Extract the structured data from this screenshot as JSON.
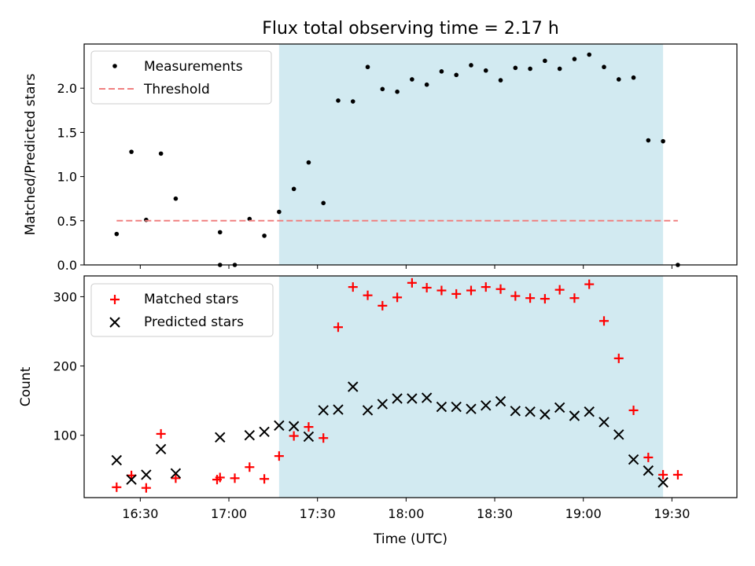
{
  "figure": {
    "title": "Flux total observing time = 2.17 h",
    "xlabel": "Time (UTC)",
    "shade_color": "#add8e6",
    "shade_range": [
      "17:17",
      "19:27"
    ]
  },
  "chart_data": [
    {
      "type": "scatter",
      "ylabel": "Matched/Predicted stars",
      "xlim": [
        "16:11",
        "19:52"
      ],
      "ylim": [
        0,
        2.5
      ],
      "yticks": [
        "0.0",
        "0.5",
        "1.0",
        "1.5",
        "2.0"
      ],
      "legend_position": "top-left",
      "series": [
        {
          "name": "Measurements",
          "marker": "dot",
          "color": "#000000",
          "points": [
            [
              "16:22",
              0.35
            ],
            [
              "16:27",
              1.28
            ],
            [
              "16:32",
              0.51
            ],
            [
              "16:37",
              1.26
            ],
            [
              "16:42",
              0.75
            ],
            [
              "16:57",
              0.0
            ],
            [
              "16:57",
              0.37
            ],
            [
              "17:02",
              0.0
            ],
            [
              "17:07",
              0.52
            ],
            [
              "17:12",
              0.33
            ],
            [
              "17:17",
              0.6
            ],
            [
              "17:22",
              0.86
            ],
            [
              "17:27",
              1.16
            ],
            [
              "17:32",
              0.7
            ],
            [
              "17:37",
              1.86
            ],
            [
              "17:42",
              1.85
            ],
            [
              "17:47",
              2.24
            ],
            [
              "17:52",
              1.99
            ],
            [
              "17:57",
              1.96
            ],
            [
              "18:02",
              2.1
            ],
            [
              "18:07",
              2.04
            ],
            [
              "18:12",
              2.19
            ],
            [
              "18:17",
              2.15
            ],
            [
              "18:22",
              2.26
            ],
            [
              "18:27",
              2.2
            ],
            [
              "18:32",
              2.09
            ],
            [
              "18:37",
              2.23
            ],
            [
              "18:42",
              2.22
            ],
            [
              "18:47",
              2.31
            ],
            [
              "18:52",
              2.22
            ],
            [
              "18:57",
              2.33
            ],
            [
              "19:02",
              2.38
            ],
            [
              "19:07",
              2.24
            ],
            [
              "19:12",
              2.1
            ],
            [
              "19:17",
              2.12
            ],
            [
              "19:22",
              1.41
            ],
            [
              "19:27",
              1.4
            ],
            [
              "19:32",
              0.0
            ]
          ]
        },
        {
          "name": "Threshold",
          "marker": "dashed-line",
          "color": "#f08080",
          "points": [
            [
              "16:22",
              0.5
            ],
            [
              "19:32",
              0.5
            ]
          ]
        }
      ]
    },
    {
      "type": "scatter",
      "ylabel": "Count",
      "xlim": [
        "16:11",
        "19:52"
      ],
      "ylim": [
        10,
        330
      ],
      "yticks": [
        "100",
        "200",
        "300"
      ],
      "xticks": [
        "16:30",
        "17:00",
        "17:30",
        "18:00",
        "18:30",
        "19:00",
        "19:30"
      ],
      "legend_position": "top-left",
      "series": [
        {
          "name": "Matched stars",
          "marker": "plus",
          "color": "#ff0000",
          "points": [
            [
              "16:22",
              25
            ],
            [
              "16:27",
              42
            ],
            [
              "16:32",
              24
            ],
            [
              "16:37",
              102
            ],
            [
              "16:42",
              38
            ],
            [
              "16:56",
              36
            ],
            [
              "16:57",
              39
            ],
            [
              "17:02",
              38
            ],
            [
              "17:07",
              54
            ],
            [
              "17:12",
              37
            ],
            [
              "17:17",
              70
            ],
            [
              "17:22",
              99
            ],
            [
              "17:27",
              112
            ],
            [
              "17:32",
              96
            ],
            [
              "17:37",
              256
            ],
            [
              "17:42",
              314
            ],
            [
              "17:47",
              302
            ],
            [
              "17:52",
              287
            ],
            [
              "17:57",
              299
            ],
            [
              "18:02",
              320
            ],
            [
              "18:07",
              313
            ],
            [
              "18:12",
              309
            ],
            [
              "18:17",
              304
            ],
            [
              "18:22",
              309
            ],
            [
              "18:27",
              314
            ],
            [
              "18:32",
              311
            ],
            [
              "18:37",
              301
            ],
            [
              "18:42",
              298
            ],
            [
              "18:47",
              297
            ],
            [
              "18:52",
              310
            ],
            [
              "18:57",
              298
            ],
            [
              "19:02",
              318
            ],
            [
              "19:07",
              265
            ],
            [
              "19:12",
              211
            ],
            [
              "19:17",
              136
            ],
            [
              "19:22",
              68
            ],
            [
              "19:27",
              43
            ],
            [
              "19:32",
              43
            ]
          ]
        },
        {
          "name": "Predicted stars",
          "marker": "x",
          "color": "#000000",
          "points": [
            [
              "16:22",
              64
            ],
            [
              "16:27",
              36
            ],
            [
              "16:32",
              43
            ],
            [
              "16:37",
              80
            ],
            [
              "16:42",
              45
            ],
            [
              "16:57",
              97
            ],
            [
              "17:07",
              100
            ],
            [
              "17:12",
              105
            ],
            [
              "17:17",
              114
            ],
            [
              "17:22",
              113
            ],
            [
              "17:27",
              98
            ],
            [
              "17:32",
              136
            ],
            [
              "17:37",
              137
            ],
            [
              "17:42",
              170
            ],
            [
              "17:47",
              136
            ],
            [
              "17:52",
              145
            ],
            [
              "17:57",
              153
            ],
            [
              "18:02",
              153
            ],
            [
              "18:07",
              154
            ],
            [
              "18:12",
              141
            ],
            [
              "18:17",
              141
            ],
            [
              "18:22",
              138
            ],
            [
              "18:27",
              143
            ],
            [
              "18:32",
              149
            ],
            [
              "18:37",
              135
            ],
            [
              "18:42",
              134
            ],
            [
              "18:47",
              130
            ],
            [
              "18:52",
              140
            ],
            [
              "18:57",
              128
            ],
            [
              "19:02",
              134
            ],
            [
              "19:07",
              119
            ],
            [
              "19:12",
              101
            ],
            [
              "19:17",
              65
            ],
            [
              "19:22",
              49
            ],
            [
              "19:27",
              32
            ]
          ]
        }
      ]
    }
  ]
}
